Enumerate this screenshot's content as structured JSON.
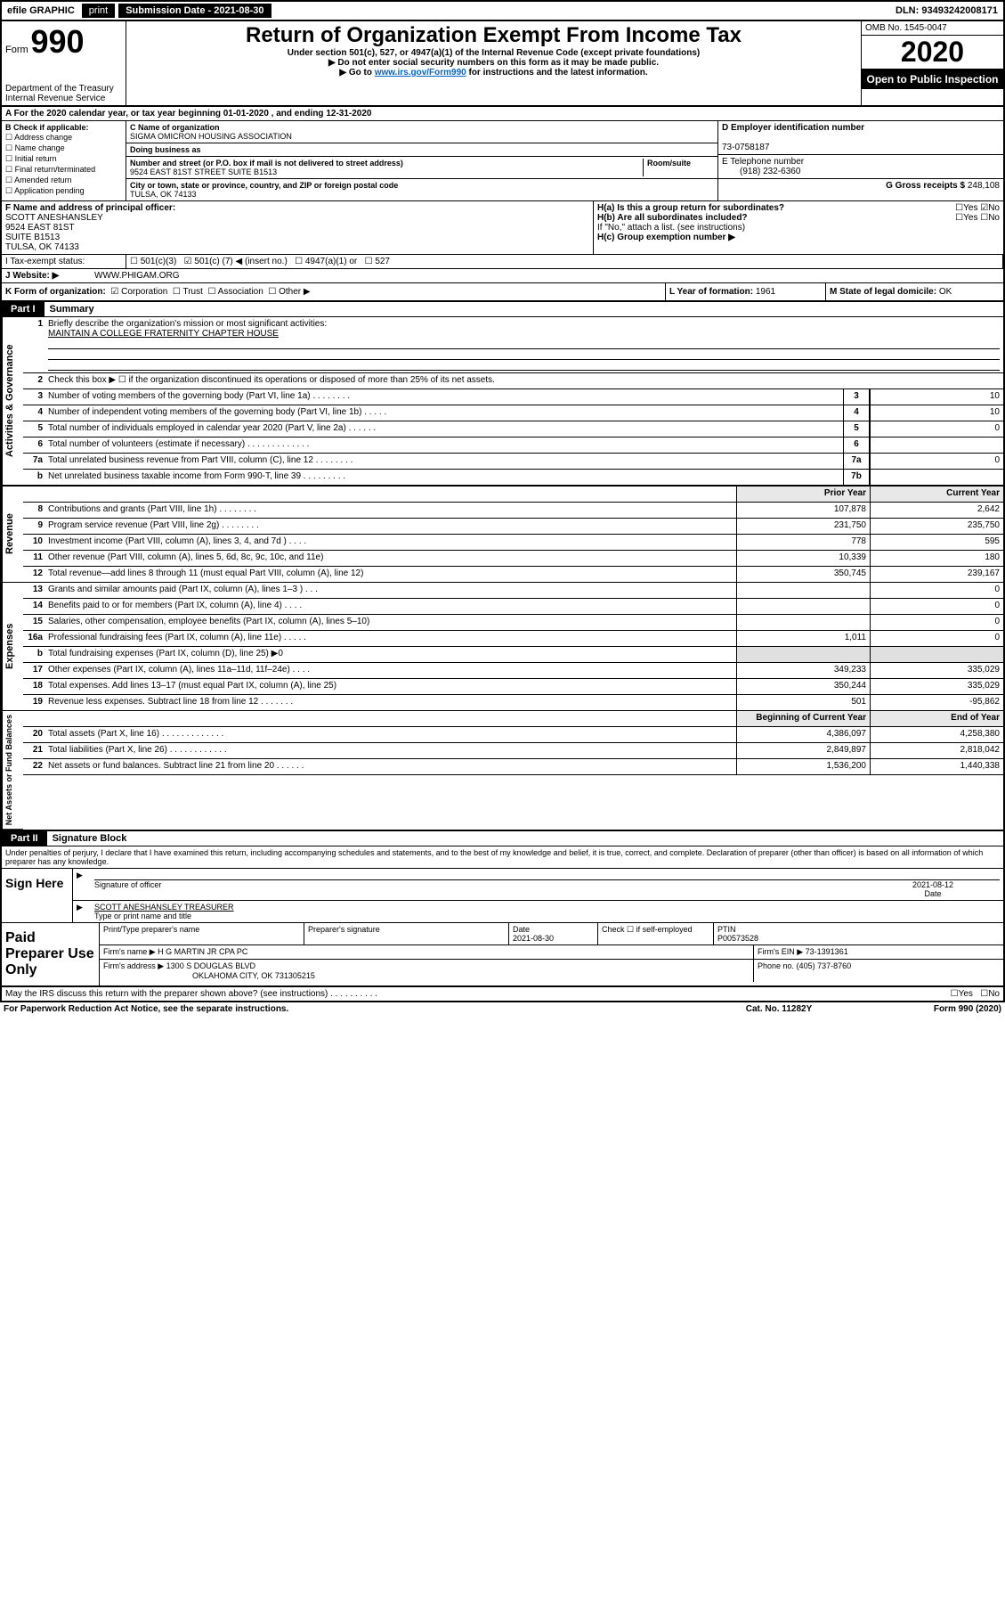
{
  "topbar": {
    "efile": "efile GRAPHIC",
    "print": "print",
    "submission": "Submission Date - 2021-08-30",
    "dln": "DLN: 93493242008171"
  },
  "header": {
    "form_word": "Form",
    "form_num": "990",
    "dept": "Department of the Treasury\nInternal Revenue Service",
    "title": "Return of Organization Exempt From Income Tax",
    "subtitle": "Under section 501(c), 527, or 4947(a)(1) of the Internal Revenue Code (except private foundations)",
    "instr1": "▶ Do not enter social security numbers on this form as it may be made public.",
    "instr2_pre": "▶ Go to ",
    "instr2_link": "www.irs.gov/Form990",
    "instr2_post": " for instructions and the latest information.",
    "omb": "OMB No. 1545-0047",
    "year": "2020",
    "open": "Open to Public Inspection"
  },
  "row_a": "A For the 2020 calendar year, or tax year beginning 01-01-2020   , and ending 12-31-2020",
  "col_b": {
    "hdr": "B Check if applicable:",
    "items": [
      "Address change",
      "Name change",
      "Initial return",
      "Final return/terminated",
      "Amended return",
      "Application pending"
    ]
  },
  "col_c": {
    "name_lbl": "C Name of organization",
    "name": "SIGMA OMICRON HOUSING ASSOCIATION",
    "dba_lbl": "Doing business as",
    "dba": "",
    "addr_lbl": "Number and street (or P.O. box if mail is not delivered to street address)",
    "room_lbl": "Room/suite",
    "addr": "9524 EAST 81ST STREET SUITE B1513",
    "city_lbl": "City or town, state or province, country, and ZIP or foreign postal code",
    "city": "TULSA, OK  74133"
  },
  "col_de": {
    "d_lbl": "D Employer identification number",
    "d_val": "73-0758187",
    "e_lbl": "E Telephone number",
    "e_val": "(918) 232-6360",
    "g_lbl": "G Gross receipts $",
    "g_val": "248,108"
  },
  "officer": {
    "f_lbl": "F Name and address of principal officer:",
    "name": "SCOTT ANESHANSLEY",
    "addr1": "9524 EAST 81ST",
    "addr2": "SUITE B1513",
    "addr3": "TULSA, OK  74133",
    "ha": "H(a)  Is this a group return for subordinates?",
    "hb": "H(b)  Are all subordinates included?",
    "hb_note": "If \"No,\" attach a list. (see instructions)",
    "hc": "H(c)  Group exemption number ▶",
    "yes": "Yes",
    "no": "No"
  },
  "tax": {
    "i_lbl": "I   Tax-exempt status:",
    "opt1": "501(c)(3)",
    "opt2_pre": "501(c) (",
    "opt2_val": "7",
    "opt2_post": ") ◀ (insert no.)",
    "opt3": "4947(a)(1) or",
    "opt4": "527"
  },
  "website": {
    "j_lbl": "J   Website: ▶",
    "val": "WWW.PHIGAM.ORG"
  },
  "formorg": {
    "k_lbl": "K Form of organization:",
    "opts": [
      "Corporation",
      "Trust",
      "Association",
      "Other ▶"
    ],
    "l_lbl": "L Year of formation:",
    "l_val": "1961",
    "m_lbl": "M State of legal domicile:",
    "m_val": "OK"
  },
  "part1": {
    "hdr": "Part I",
    "title": "Summary",
    "q1": "Briefly describe the organization's mission or most significant activities:",
    "q1_val": "MAINTAIN A COLLEGE FRATERNITY CHAPTER HOUSE",
    "q2": "Check this box ▶ ☐  if the organization discontinued its operations or disposed of more than 25% of its net assets.",
    "lines": [
      {
        "n": "3",
        "d": "Number of voting members of the governing body (Part VI, line 1a)  .  .  .  .  .  .  .  .",
        "b": "3",
        "v": "10"
      },
      {
        "n": "4",
        "d": "Number of independent voting members of the governing body (Part VI, line 1b)  .  .  .  .  .",
        "b": "4",
        "v": "10"
      },
      {
        "n": "5",
        "d": "Total number of individuals employed in calendar year 2020 (Part V, line 2a)  .  .  .  .  .  .",
        "b": "5",
        "v": "0"
      },
      {
        "n": "6",
        "d": "Total number of volunteers (estimate if necessary)  .  .  .  .  .  .  .  .  .  .  .  .  .",
        "b": "6",
        "v": ""
      },
      {
        "n": "7a",
        "d": "Total unrelated business revenue from Part VIII, column (C), line 12  .  .  .  .  .  .  .  .",
        "b": "7a",
        "v": "0"
      },
      {
        "n": "b",
        "d": "Net unrelated business taxable income from Form 990-T, line 39  .  .  .  .  .  .  .  .  .",
        "b": "7b",
        "v": ""
      }
    ],
    "prior": "Prior Year",
    "current": "Current Year",
    "rev": [
      {
        "n": "8",
        "d": "Contributions and grants (Part VIII, line 1h)  .  .  .  .  .  .  .  .",
        "p": "107,878",
        "c": "2,642"
      },
      {
        "n": "9",
        "d": "Program service revenue (Part VIII, line 2g)  .  .  .  .  .  .  .  .",
        "p": "231,750",
        "c": "235,750"
      },
      {
        "n": "10",
        "d": "Investment income (Part VIII, column (A), lines 3, 4, and 7d )  .  .  .  .",
        "p": "778",
        "c": "595"
      },
      {
        "n": "11",
        "d": "Other revenue (Part VIII, column (A), lines 5, 6d, 8c, 9c, 10c, and 11e)",
        "p": "10,339",
        "c": "180"
      },
      {
        "n": "12",
        "d": "Total revenue—add lines 8 through 11 (must equal Part VIII, column (A), line 12)",
        "p": "350,745",
        "c": "239,167"
      }
    ],
    "exp": [
      {
        "n": "13",
        "d": "Grants and similar amounts paid (Part IX, column (A), lines 1–3 )  .  .  .",
        "p": "",
        "c": "0"
      },
      {
        "n": "14",
        "d": "Benefits paid to or for members (Part IX, column (A), line 4)  .  .  .  .",
        "p": "",
        "c": "0"
      },
      {
        "n": "15",
        "d": "Salaries, other compensation, employee benefits (Part IX, column (A), lines 5–10)",
        "p": "",
        "c": "0"
      },
      {
        "n": "16a",
        "d": "Professional fundraising fees (Part IX, column (A), line 11e)  .  .  .  .  .",
        "p": "1,011",
        "c": "0"
      },
      {
        "n": "b",
        "d": "Total fundraising expenses (Part IX, column (D), line 25) ▶0",
        "p": "gray",
        "c": "gray"
      },
      {
        "n": "17",
        "d": "Other expenses (Part IX, column (A), lines 11a–11d, 11f–24e)  .  .  .  .",
        "p": "349,233",
        "c": "335,029"
      },
      {
        "n": "18",
        "d": "Total expenses. Add lines 13–17 (must equal Part IX, column (A), line 25)",
        "p": "350,244",
        "c": "335,029"
      },
      {
        "n": "19",
        "d": "Revenue less expenses. Subtract line 18 from line 12  .  .  .  .  .  .  .",
        "p": "501",
        "c": "-95,862"
      }
    ],
    "bcy": "Beginning of Current Year",
    "eoy": "End of Year",
    "net": [
      {
        "n": "20",
        "d": "Total assets (Part X, line 16)  .  .  .  .  .  .  .  .  .  .  .  .  .",
        "p": "4,386,097",
        "c": "4,258,380"
      },
      {
        "n": "21",
        "d": "Total liabilities (Part X, line 26)  .  .  .  .  .  .  .  .  .  .  .  .",
        "p": "2,849,897",
        "c": "2,818,042"
      },
      {
        "n": "22",
        "d": "Net assets or fund balances. Subtract line 21 from line 20  .  .  .  .  .  .",
        "p": "1,536,200",
        "c": "1,440,338"
      }
    ],
    "vtabs": [
      "Activities & Governance",
      "Revenue",
      "Expenses",
      "Net Assets or Fund Balances"
    ]
  },
  "part2": {
    "hdr": "Part II",
    "title": "Signature Block",
    "decl": "Under penalties of perjury, I declare that I have examined this return, including accompanying schedules and statements, and to the best of my knowledge and belief, it is true, correct, and complete. Declaration of preparer (other than officer) is based on all information of which preparer has any knowledge.",
    "sign_here": "Sign Here",
    "sig_officer": "Signature of officer",
    "date_lbl": "Date",
    "date_val": "2021-08-12",
    "name": "SCOTT ANESHANSLEY TREASURER",
    "name_lbl": "Type or print name and title",
    "paid": "Paid Preparer Use Only",
    "prep_name_lbl": "Print/Type preparer's name",
    "prep_sig_lbl": "Preparer's signature",
    "prep_date_lbl": "Date",
    "prep_date": "2021-08-30",
    "check_lbl": "Check ☐ if self-employed",
    "ptin_lbl": "PTIN",
    "ptin": "P00573528",
    "firm_name_lbl": "Firm's name    ▶",
    "firm_name": "H G MARTIN JR CPA PC",
    "firm_ein_lbl": "Firm's EIN ▶",
    "firm_ein": "73-1391361",
    "firm_addr_lbl": "Firm's address ▶",
    "firm_addr": "1300 S DOUGLAS BLVD",
    "firm_city": "OKLAHOMA CITY, OK  731305215",
    "phone_lbl": "Phone no.",
    "phone": "(405) 737-8760",
    "discuss": "May the IRS discuss this return with the preparer shown above? (see instructions)  .  .  .  .  .  .  .  .  .  .",
    "yes": "Yes",
    "no": "No"
  },
  "footer": {
    "paperwork": "For Paperwork Reduction Act Notice, see the separate instructions.",
    "cat": "Cat. No. 11282Y",
    "form": "Form 990 (2020)"
  }
}
